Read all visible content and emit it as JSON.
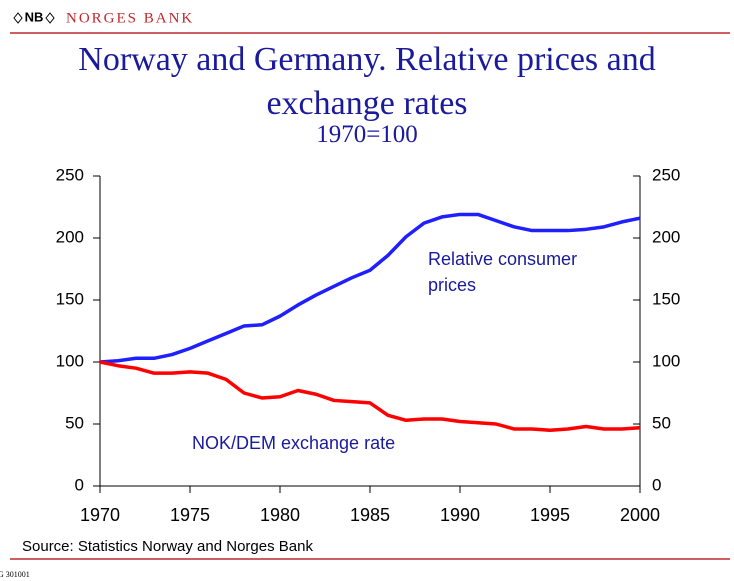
{
  "header": {
    "logo": "NB",
    "bank": "NORGES BANK"
  },
  "chart_data": {
    "type": "line",
    "title": "Norway and Germany. Relative prices and exchange rates",
    "subtitle": "1970=100",
    "x": [
      1970,
      1971,
      1972,
      1973,
      1974,
      1975,
      1976,
      1977,
      1978,
      1979,
      1980,
      1981,
      1982,
      1983,
      1984,
      1985,
      1986,
      1987,
      1988,
      1989,
      1990,
      1991,
      1992,
      1993,
      1994,
      1995,
      1996,
      1997,
      1998,
      1999,
      2000
    ],
    "series": [
      {
        "name": "Relative consumer prices",
        "color": "#1f1fff",
        "values": [
          100,
          101,
          103,
          103,
          106,
          111,
          117,
          123,
          129,
          130,
          137,
          146,
          154,
          161,
          168,
          174,
          186,
          201,
          212,
          217,
          219,
          219,
          214,
          209,
          206,
          206,
          206,
          207,
          209,
          213,
          216
        ]
      },
      {
        "name": "NOK/DEM exchange rate",
        "color": "#ff0000",
        "values": [
          100,
          97,
          95,
          91,
          91,
          92,
          91,
          86,
          75,
          71,
          72,
          77,
          74,
          69,
          68,
          67,
          57,
          53,
          54,
          54,
          52,
          51,
          50,
          46,
          46,
          45,
          46,
          48,
          46,
          46,
          47
        ]
      }
    ],
    "xlim": [
      1970,
      2000
    ],
    "xticks": [
      1970,
      1975,
      1980,
      1985,
      1990,
      1995,
      2000
    ],
    "ylim": [
      0,
      250
    ],
    "yticks": [
      0,
      50,
      100,
      150,
      200,
      250
    ],
    "y2lim": [
      0,
      250
    ],
    "y2ticks": [
      0,
      50,
      100,
      150,
      200,
      250
    ],
    "source": "Source: Statistics Norway and Norges Bank",
    "footnote": "G 301001"
  }
}
